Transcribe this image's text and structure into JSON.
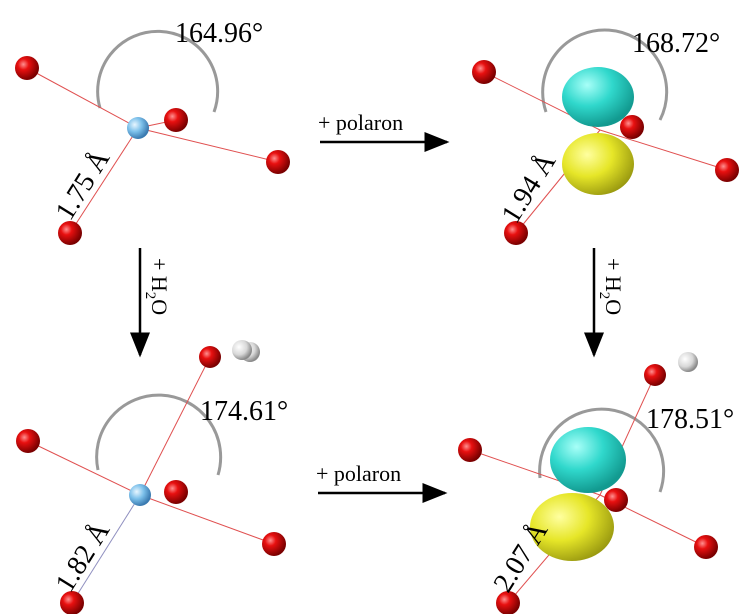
{
  "panels": [
    {
      "angle": "164.96°",
      "bond": "1.75 Å"
    },
    {
      "angle": "168.72°",
      "bond": "1.94 Å"
    },
    {
      "angle": "174.61°",
      "bond": "1.82 Å"
    },
    {
      "angle": "178.51°",
      "bond": "2.07 Å"
    }
  ],
  "arrows": {
    "horizontal": [
      "+ polaron",
      "+ polaron"
    ],
    "vertical": [
      [
        "+ H",
        "2",
        "O"
      ],
      [
        "+ H",
        "2",
        "O"
      ]
    ]
  }
}
